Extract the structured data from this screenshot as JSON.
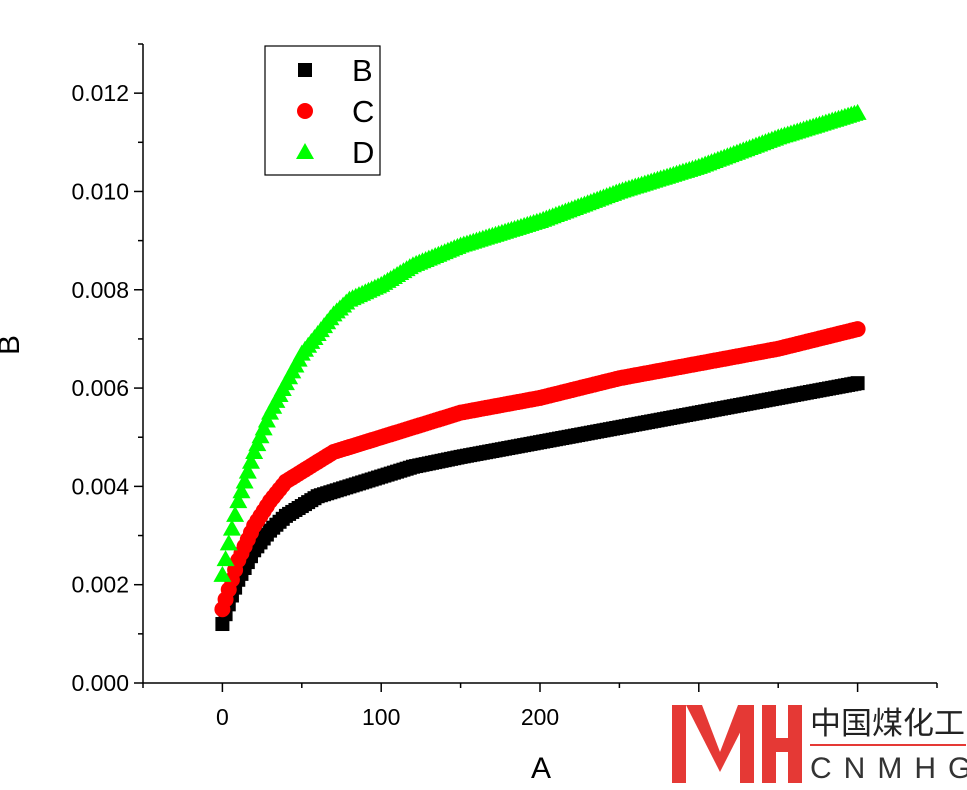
{
  "chart_data": {
    "type": "scatter",
    "title": "",
    "xlabel": "A",
    "ylabel": "B",
    "xlim": [
      -50,
      450
    ],
    "ylim": [
      0,
      0.013
    ],
    "x_ticks": [
      0,
      100,
      200
    ],
    "x_tick_labels": [
      "0",
      "100",
      "200"
    ],
    "y_ticks": [
      0,
      0.002,
      0.004,
      0.006,
      0.008,
      0.01,
      0.012
    ],
    "y_tick_labels": [
      "0.000",
      "0.002",
      "0.004",
      "0.006",
      "0.008",
      "0.010",
      "0.012"
    ],
    "legend_position": "top-left",
    "series": [
      {
        "name": "B",
        "marker": "square",
        "color": "#000000",
        "x": [
          0,
          5,
          10,
          20,
          30,
          40,
          50,
          60,
          70,
          80,
          100,
          120,
          150,
          200,
          250,
          300,
          350,
          400
        ],
        "y": [
          0.0012,
          0.0017,
          0.0021,
          0.0027,
          0.0031,
          0.0034,
          0.0036,
          0.0038,
          0.0039,
          0.004,
          0.0042,
          0.0044,
          0.0046,
          0.0049,
          0.0052,
          0.0055,
          0.0058,
          0.0061
        ]
      },
      {
        "name": "C",
        "marker": "circle",
        "color": "#ff0000",
        "x": [
          0,
          5,
          10,
          20,
          30,
          40,
          50,
          60,
          70,
          80,
          100,
          120,
          150,
          200,
          250,
          300,
          350,
          400
        ],
        "y": [
          0.0015,
          0.002,
          0.0025,
          0.0032,
          0.0037,
          0.0041,
          0.0043,
          0.0045,
          0.0047,
          0.0048,
          0.005,
          0.0052,
          0.0055,
          0.0058,
          0.0062,
          0.0065,
          0.0068,
          0.0072
        ]
      },
      {
        "name": "D",
        "marker": "triangle",
        "color": "#00ff00",
        "x": [
          0,
          5,
          10,
          20,
          30,
          40,
          50,
          60,
          70,
          80,
          100,
          120,
          150,
          200,
          250,
          300,
          350,
          400
        ],
        "y": [
          0.0022,
          0.003,
          0.0037,
          0.0047,
          0.0055,
          0.0061,
          0.0067,
          0.0071,
          0.0075,
          0.0078,
          0.0081,
          0.0085,
          0.0089,
          0.0094,
          0.01,
          0.0105,
          0.0111,
          0.0116
        ]
      }
    ]
  },
  "watermark": {
    "logo_letters": "MH",
    "cn_text": "中国煤化工",
    "en_text": "CNMHG",
    "logo_color": "#e53935"
  }
}
